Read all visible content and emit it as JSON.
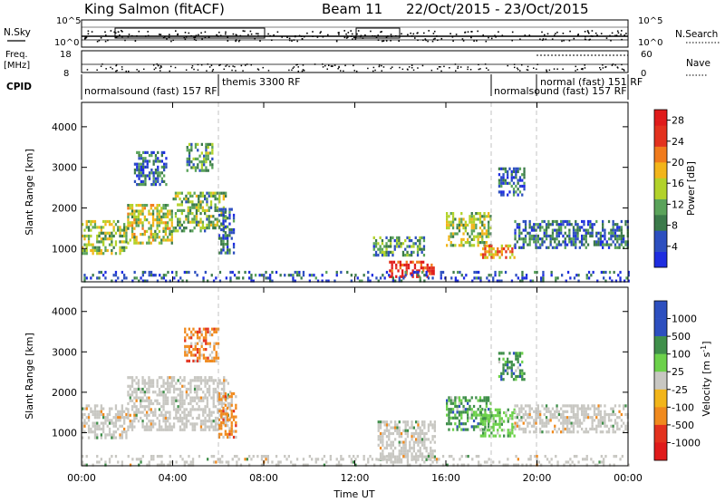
{
  "header": {
    "station": "King Salmon (fitACF)",
    "beam": "Beam 11",
    "dates": "22/Oct/2015 - 23/Oct/2015"
  },
  "summary_panels": {
    "nsky_label": "N.Sky",
    "nsearch_label": "N.Search",
    "nsky_ticks": [
      "10^5",
      "10^0"
    ],
    "nsearch_ticks": [
      "10^5",
      "10^0"
    ],
    "freq_label": "Freq.",
    "freq_unit": "[MHz]",
    "freq_ticks": [
      "18",
      "8"
    ],
    "nave_label": "Nave",
    "nave_ticks": [
      "60",
      "0"
    ],
    "cpid_label": "CPID",
    "cpid_segments": [
      {
        "label": "normalsound (fast) 157 RF",
        "start_h": 0,
        "end_h": 6
      },
      {
        "label": "themis 3300 RF",
        "start_h": 6,
        "end_h": 18
      },
      {
        "label": "normalsound (fast) 157 RF",
        "start_h": 18,
        "end_h": 20
      },
      {
        "label": "normal (fast) 151 RF",
        "start_h": 20,
        "end_h": 24
      }
    ]
  },
  "chart_data": [
    {
      "type": "heatmap",
      "panel": "power",
      "ylabel": "Slant Range [km]",
      "xlabel": "Time UT",
      "x_ticks": [
        "00:00",
        "04:00",
        "08:00",
        "12:00",
        "16:00",
        "20:00",
        "00:00"
      ],
      "xlim_hours": [
        0,
        24
      ],
      "y_ticks": [
        1000,
        2000,
        3000,
        4000
      ],
      "ylim_km": [
        180,
        4600
      ],
      "colorbar": {
        "label": "Power [dB]",
        "ticks": [
          4,
          8,
          12,
          16,
          20,
          24,
          28
        ],
        "range": [
          0,
          30
        ]
      },
      "echo_regions": [
        {
          "t0": 0.0,
          "t1": 2.0,
          "r0": 900,
          "r1": 1700,
          "level": 14
        },
        {
          "t0": 2.0,
          "t1": 4.0,
          "r0": 1100,
          "r1": 2100,
          "level": 15
        },
        {
          "t0": 4.0,
          "t1": 6.3,
          "r0": 1400,
          "r1": 2400,
          "level": 12
        },
        {
          "t0": 2.3,
          "t1": 3.7,
          "r0": 2600,
          "r1": 3400,
          "level": 7
        },
        {
          "t0": 4.6,
          "t1": 5.7,
          "r0": 2900,
          "r1": 3600,
          "level": 11
        },
        {
          "t0": 6.0,
          "t1": 6.7,
          "r0": 900,
          "r1": 2000,
          "level": 6
        },
        {
          "t0": 12.8,
          "t1": 15.0,
          "r0": 800,
          "r1": 1300,
          "level": 9
        },
        {
          "t0": 13.5,
          "t1": 15.5,
          "r0": 300,
          "r1": 700,
          "level": 26
        },
        {
          "t0": 16.0,
          "t1": 18.0,
          "r0": 1100,
          "r1": 1900,
          "level": 14
        },
        {
          "t0": 17.5,
          "t1": 19.0,
          "r0": 800,
          "r1": 1100,
          "level": 20
        },
        {
          "t0": 18.3,
          "t1": 19.4,
          "r0": 2300,
          "r1": 3000,
          "level": 6
        },
        {
          "t0": 19.0,
          "t1": 24.0,
          "r0": 1000,
          "r1": 1700,
          "level": 7
        },
        {
          "t0": 0.0,
          "t1": 24.0,
          "r0": 180,
          "r1": 450,
          "level": 5
        }
      ]
    },
    {
      "type": "heatmap",
      "panel": "velocity",
      "ylabel": "Slant Range [km]",
      "xlabel": "Time UT",
      "x_ticks": [
        "00:00",
        "04:00",
        "08:00",
        "12:00",
        "16:00",
        "20:00",
        "00:00"
      ],
      "xlim_hours": [
        0,
        24
      ],
      "y_ticks": [
        1000,
        2000,
        3000,
        4000
      ],
      "ylim_km": [
        180,
        4600
      ],
      "colorbar": {
        "label": "Velocity [m s^-1]",
        "ticks": [
          1000,
          500,
          100,
          25,
          -25,
          -100,
          -500,
          -1000
        ]
      },
      "echo_regions": [
        {
          "t0": 0.0,
          "t1": 2.0,
          "r0": 900,
          "r1": 1700,
          "class": "ground"
        },
        {
          "t0": 2.0,
          "t1": 6.5,
          "r0": 1100,
          "r1": 2400,
          "class": "ground"
        },
        {
          "t0": 4.5,
          "t1": 6.0,
          "r0": 2800,
          "r1": 3600,
          "class": "neg"
        },
        {
          "t0": 6.0,
          "t1": 6.8,
          "r0": 900,
          "r1": 2000,
          "class": "neg"
        },
        {
          "t0": 13.0,
          "t1": 15.5,
          "r0": 300,
          "r1": 1300,
          "class": "ground"
        },
        {
          "t0": 16.0,
          "t1": 18.0,
          "r0": 1100,
          "r1": 1900,
          "class": "pos"
        },
        {
          "t0": 17.5,
          "t1": 19.0,
          "r0": 900,
          "r1": 1600,
          "class": "pos_light"
        },
        {
          "t0": 18.3,
          "t1": 19.4,
          "r0": 2300,
          "r1": 3000,
          "class": "pos"
        },
        {
          "t0": 19.0,
          "t1": 24.0,
          "r0": 1000,
          "r1": 1700,
          "class": "ground"
        },
        {
          "t0": 0.0,
          "t1": 24.0,
          "r0": 180,
          "r1": 450,
          "class": "ground"
        }
      ]
    }
  ],
  "colors": {
    "power_scale": [
      "#1e2de0",
      "#2d4fbf",
      "#3b7a4a",
      "#5aa35a",
      "#b2d22a",
      "#f2b51a",
      "#f07b1c",
      "#e3321e",
      "#e01b1b"
    ],
    "ground": "#c8c7c2",
    "vel_pos_strong": "#2d4fbf",
    "vel_pos": "#3f8f4a",
    "vel_pos_light": "#6cd14a",
    "vel_neg": "#f08a1e",
    "vel_neg_strong": "#e3321e"
  }
}
